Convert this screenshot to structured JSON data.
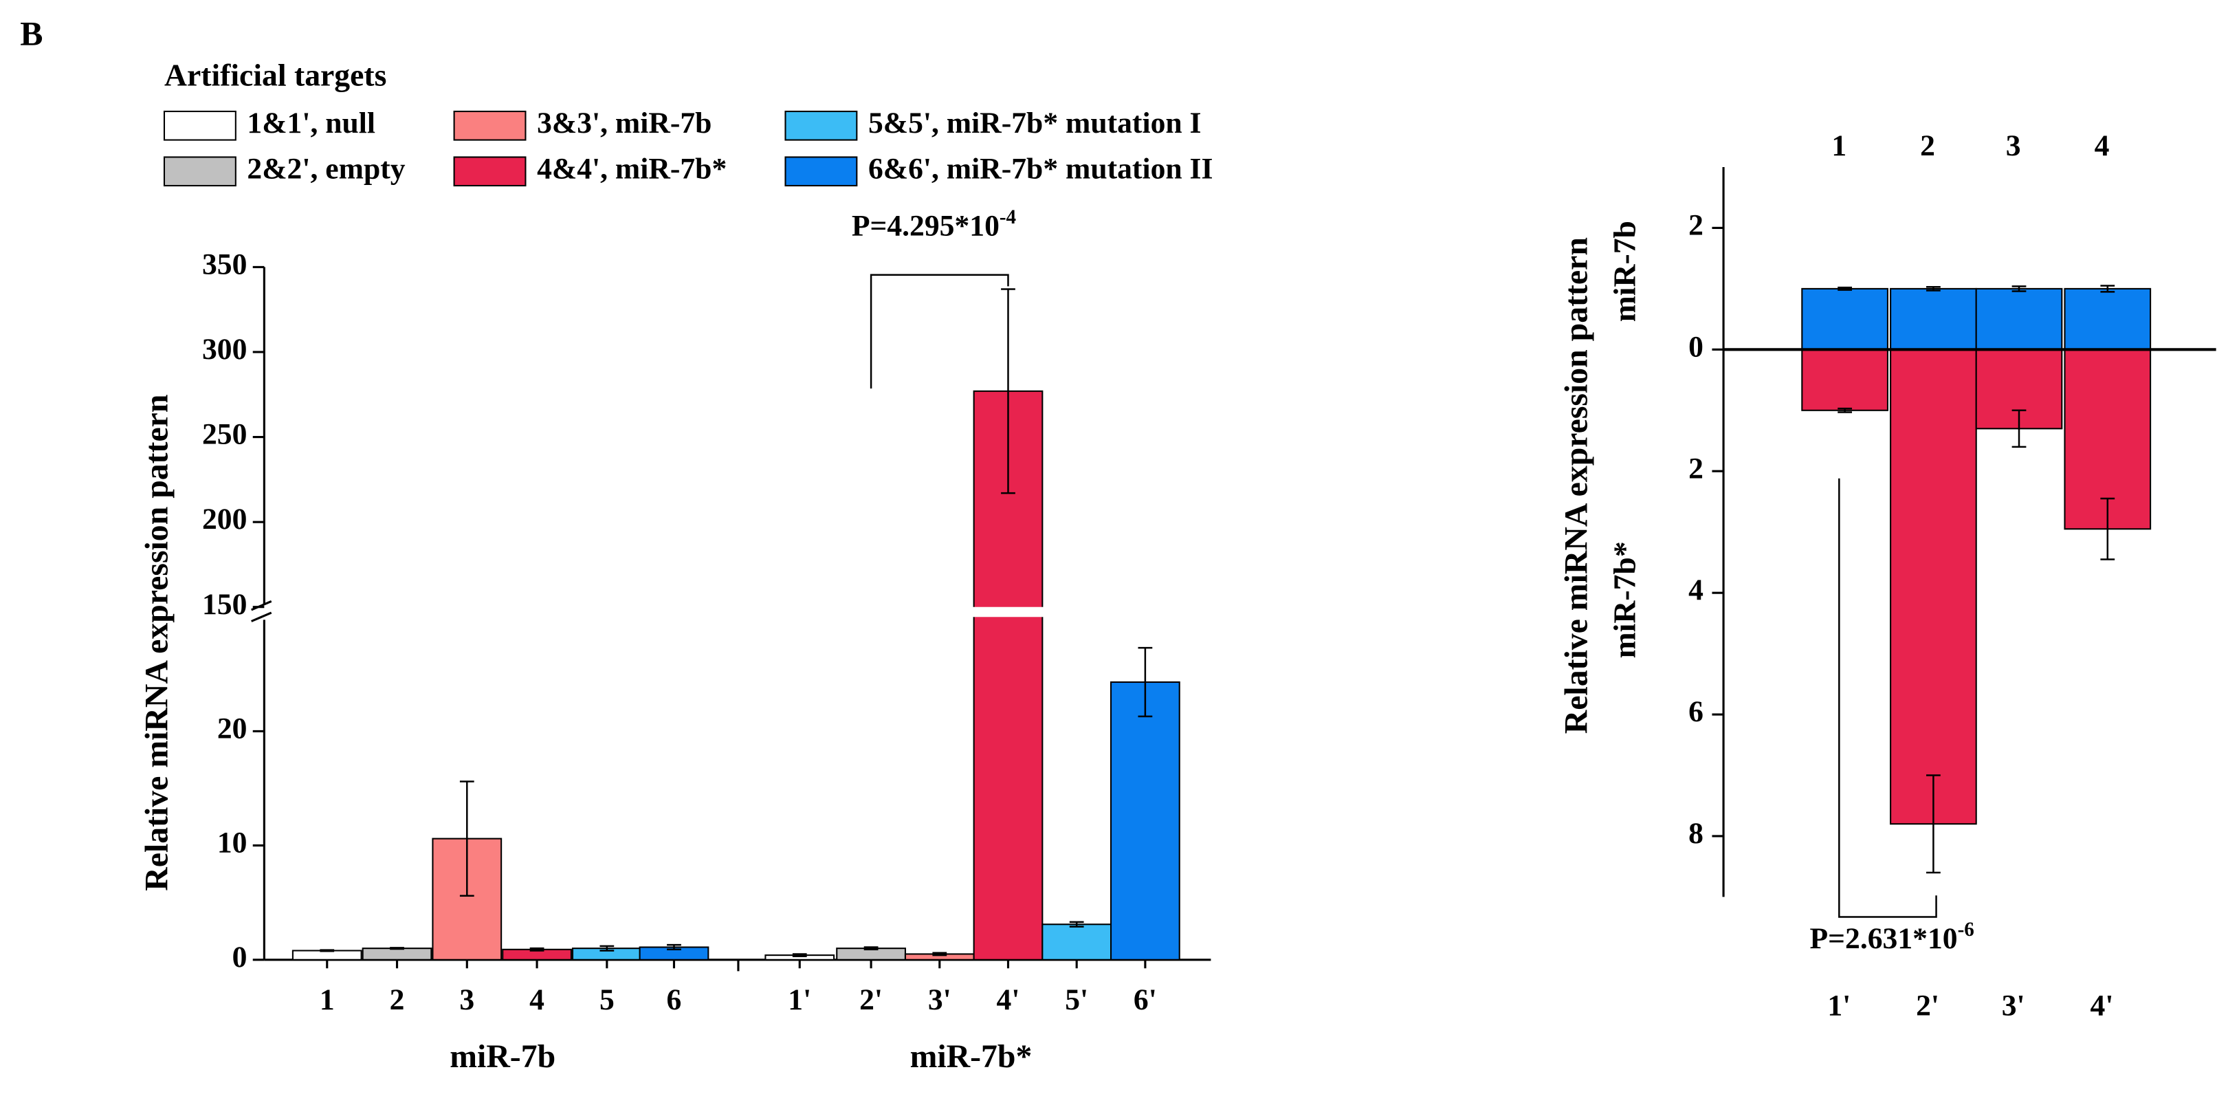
{
  "panel_label": "B",
  "chart_data": [
    {
      "type": "bar",
      "legend_title": "Artificial targets",
      "legend": [
        "1&1', null",
        "2&2', empty",
        "3&3', miR-7b",
        "4&4', miR-7b*",
        "5&5', miR-7b* mutation I",
        "6&6', miR-7b* mutation II"
      ],
      "colors": [
        "#ffffff",
        "#c0c0c0",
        "#fa8080",
        "#e8234e",
        "#3cbcf5",
        "#0a7ff0"
      ],
      "ylabel": "Relative miRNA expression pattern",
      "groups": [
        {
          "name": "miR-7b",
          "categories": [
            "1",
            "2",
            "3",
            "4",
            "5",
            "6"
          ],
          "values": [
            0.8,
            1.0,
            10.6,
            0.9,
            1.0,
            1.1
          ],
          "errors": [
            0.05,
            0.05,
            5.0,
            0.1,
            0.2,
            0.2
          ]
        },
        {
          "name": "miR-7b*",
          "categories": [
            "1'",
            "2'",
            "3'",
            "4'",
            "5'",
            "6'"
          ],
          "values": [
            0.4,
            1.0,
            0.5,
            277,
            3.1,
            24.3
          ],
          "errors": [
            0.1,
            0.1,
            0.1,
            60,
            0.2,
            3.0
          ]
        }
      ],
      "ylim": [
        0,
        350
      ],
      "ybreak": [
        30,
        150
      ],
      "yticks": [
        0,
        10,
        20,
        150,
        200,
        250,
        300,
        350
      ],
      "annotation": {
        "text": "P=4.295*10",
        "exponent": "-4"
      }
    },
    {
      "type": "diverging-bar",
      "ylabel": "Relative miRNA expression pattern",
      "ylim": [
        -9,
        3
      ],
      "yticks": [
        2,
        0,
        {
          "value": -2,
          "label": "2"
        },
        {
          "value": -4,
          "label": "4"
        },
        {
          "value": -6,
          "label": "6"
        },
        {
          "value": -8,
          "label": "8"
        }
      ],
      "series": [
        {
          "name": "miR-7b",
          "color": "#0a7ff0",
          "categories": [
            "1",
            "2",
            "3",
            "4"
          ],
          "values": [
            1,
            1,
            1,
            1
          ],
          "errors": [
            0.02,
            0.03,
            0.04,
            0.05
          ]
        },
        {
          "name": "miR-7b*",
          "color": "#e8234e",
          "categories": [
            "1'",
            "2'",
            "3'",
            "4'"
          ],
          "values": [
            -1,
            -7.8,
            -1.3,
            -2.95
          ],
          "errors": [
            0.03,
            0.8,
            0.3,
            0.5
          ]
        }
      ],
      "annotation": {
        "text": "P=2.631*10",
        "exponent": "-6"
      }
    }
  ]
}
